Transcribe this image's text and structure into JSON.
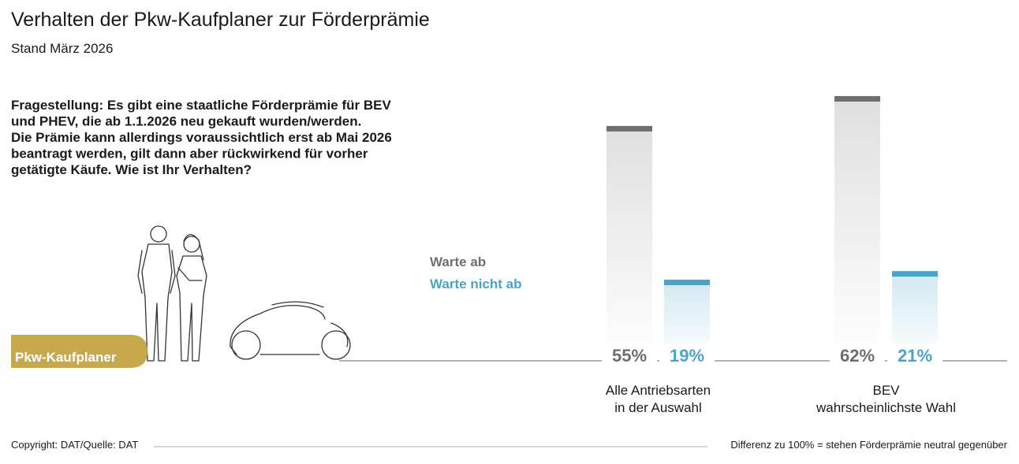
{
  "chart_data": {
    "type": "bar",
    "title": "Verhalten der Pkw-Kaufplaner zur Förderprämie",
    "subtitle": "Stand März 2026",
    "question": [
      "Fragestellung: Es gibt eine staatliche Förderprämie für BEV",
      "und PHEV, die ab 1.1.2026 neu gekauft wurden/werden.",
      "Die Prämie kann allerdings voraussichtlich erst ab Mai 2026",
      "beantragt werden, gilt dann aber rückwirkend für vorher",
      "getätigte Käufe. Wie ist Ihr Verhalten?"
    ],
    "badge": "Pkw-Kaufplaner",
    "categories": [
      [
        "Alle Antriebsarten",
        "in der Auswahl"
      ],
      [
        "BEV",
        "wahrscheinlichste Wahl"
      ]
    ],
    "series": [
      {
        "name": "Warte ab",
        "color": "#6e6e6e",
        "values": [
          55,
          62
        ],
        "value_labels": [
          "55%",
          "62%"
        ]
      },
      {
        "name": "Warte nicht ab",
        "color": "#4ba3c9",
        "values": [
          19,
          21
        ],
        "value_labels": [
          "19%",
          "21%"
        ]
      }
    ],
    "source": "Copyright: DAT/Quelle: DAT",
    "footnote": "Differenz zu 100% = stehen Förderprämie neutral gegenüber"
  }
}
